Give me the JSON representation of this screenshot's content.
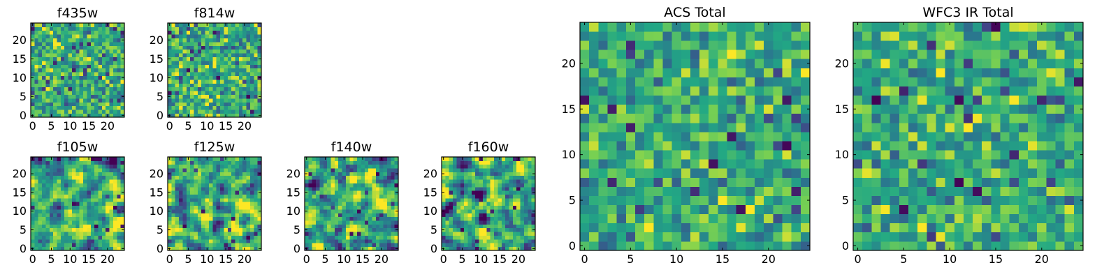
{
  "figure": {
    "background": "#ffffff"
  },
  "colormap": {
    "name": "viridis",
    "stops": [
      "#440154",
      "#414487",
      "#2a788e",
      "#22a884",
      "#7ad151",
      "#fde725"
    ]
  },
  "chart_data": [
    {
      "id": "f435w",
      "type": "heatmap",
      "title": "f435w",
      "grid_size": [
        25,
        25
      ],
      "xlim": [
        -0.5,
        24.5
      ],
      "ylim": [
        -0.5,
        24.5
      ],
      "xticks": [
        0,
        5,
        10,
        15,
        20
      ],
      "yticks": [
        0,
        5,
        10,
        15,
        20
      ],
      "texture": "fine random noise",
      "seed": 11,
      "smoothing": 0,
      "mean": 0.62,
      "spread": 0.18
    },
    {
      "id": "f814w",
      "type": "heatmap",
      "title": "f814w",
      "grid_size": [
        25,
        25
      ],
      "xlim": [
        -0.5,
        24.5
      ],
      "ylim": [
        -0.5,
        24.5
      ],
      "xticks": [
        0,
        5,
        10,
        15,
        20
      ],
      "yticks": [
        0,
        5,
        10,
        15,
        20
      ],
      "texture": "fine random noise",
      "seed": 23,
      "smoothing": 0,
      "mean": 0.62,
      "spread": 0.18
    },
    {
      "id": "f105w",
      "type": "heatmap",
      "title": "f105w",
      "grid_size": [
        25,
        25
      ],
      "xlim": [
        -0.5,
        24.5
      ],
      "ylim": [
        -0.5,
        24.5
      ],
      "xticks": [
        0,
        5,
        10,
        15,
        20
      ],
      "yticks": [
        0,
        5,
        10,
        15,
        20
      ],
      "texture": "smoothed noise",
      "seed": 37,
      "smoothing": 1,
      "mean": 0.62,
      "spread": 0.22
    },
    {
      "id": "f125w",
      "type": "heatmap",
      "title": "f125w",
      "grid_size": [
        25,
        25
      ],
      "xlim": [
        -0.5,
        24.5
      ],
      "ylim": [
        -0.5,
        24.5
      ],
      "xticks": [
        0,
        5,
        10,
        15,
        20
      ],
      "yticks": [
        0,
        5,
        10,
        15,
        20
      ],
      "texture": "smoothed noise",
      "seed": 41,
      "smoothing": 1,
      "mean": 0.62,
      "spread": 0.22
    },
    {
      "id": "f140w",
      "type": "heatmap",
      "title": "f140w",
      "grid_size": [
        25,
        25
      ],
      "xlim": [
        -0.5,
        24.5
      ],
      "ylim": [
        -0.5,
        24.5
      ],
      "xticks": [
        0,
        5,
        10,
        15,
        20
      ],
      "yticks": [
        0,
        5,
        10,
        15,
        20
      ],
      "texture": "smoothed noise",
      "seed": 53,
      "smoothing": 1,
      "mean": 0.6,
      "spread": 0.24
    },
    {
      "id": "f160w",
      "type": "heatmap",
      "title": "f160w",
      "grid_size": [
        25,
        25
      ],
      "xlim": [
        -0.5,
        24.5
      ],
      "ylim": [
        -0.5,
        24.5
      ],
      "xticks": [
        0,
        5,
        10,
        15,
        20
      ],
      "yticks": [
        0,
        5,
        10,
        15,
        20
      ],
      "texture": "smoothed noise",
      "seed": 67,
      "smoothing": 1,
      "mean": 0.6,
      "spread": 0.24
    },
    {
      "id": "acs-total",
      "type": "heatmap",
      "title": "ACS Total",
      "grid_size": [
        25,
        25
      ],
      "xlim": [
        -0.5,
        24.5
      ],
      "ylim": [
        -0.5,
        24.5
      ],
      "xticks": [
        0,
        5,
        10,
        15,
        20
      ],
      "yticks": [
        0,
        5,
        10,
        15,
        20
      ],
      "texture": "fine random noise",
      "seed": 79,
      "smoothing": 0,
      "mean": 0.62,
      "spread": 0.16
    },
    {
      "id": "wfc3-ir-total",
      "type": "heatmap",
      "title": "WFC3 IR Total",
      "grid_size": [
        25,
        25
      ],
      "xlim": [
        -0.5,
        24.5
      ],
      "ylim": [
        -0.5,
        24.5
      ],
      "xticks": [
        0,
        5,
        10,
        15,
        20
      ],
      "yticks": [
        0,
        5,
        10,
        15,
        20
      ],
      "texture": "fine random noise",
      "seed": 97,
      "smoothing": 0,
      "mean": 0.62,
      "spread": 0.16
    }
  ]
}
